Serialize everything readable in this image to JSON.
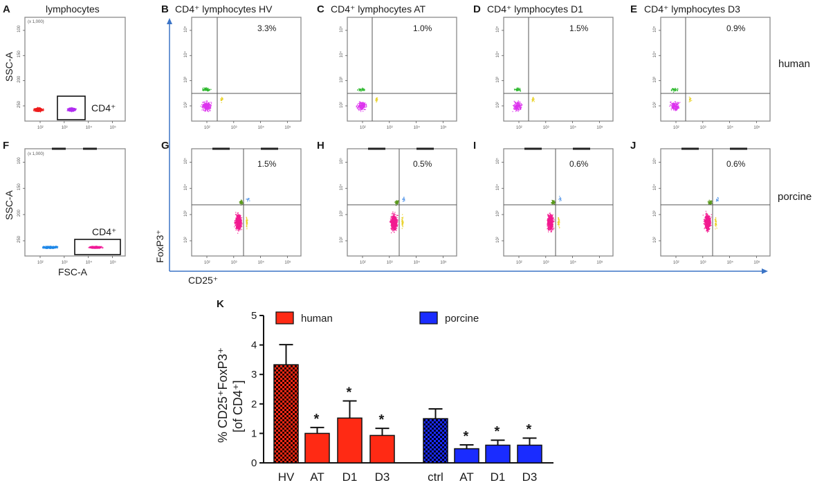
{
  "colors": {
    "human_bar": "#ff2a14",
    "porcine_bar": "#1a2cff",
    "arrow": "#3b74c6",
    "human_lymph": "#ee1c1c",
    "human_cd4": "#b02cf0",
    "porcine_lymph": "#1f88e8",
    "porcine_cd4": "#f01896",
    "human_tl": "#dd33ee",
    "human_ul": "#2db82d",
    "porcine_tl": "#f21a90",
    "porcine_ul": "#5a9a1c",
    "side_yellow": "#e9d32a",
    "side_blue": "#4a90e8"
  },
  "gating_panels": [
    {
      "letter": "A",
      "title": "lymphocytes",
      "ylabel": "SSC-A",
      "xlabel": "",
      "gate_label": "CD4⁺",
      "scale": "(x 1,000)",
      "species": "human"
    },
    {
      "letter": "F",
      "title": "",
      "ylabel": "SSC-A",
      "xlabel": "FSC-A",
      "gate_label": "CD4⁺",
      "scale": "(x 1,000)",
      "species": "porcine"
    }
  ],
  "flow_panels": [
    {
      "letter": "B",
      "title": "CD4⁺ lymphocytes HV",
      "percent": "3.3%",
      "species": "human"
    },
    {
      "letter": "C",
      "title": "CD4⁺ lymphocytes AT",
      "percent": "1.0%",
      "species": "human"
    },
    {
      "letter": "D",
      "title": "CD4⁺ lymphocytes D1",
      "percent": "1.5%",
      "species": "human"
    },
    {
      "letter": "E",
      "title": "CD4⁺ lymphocytes D3",
      "percent": "0.9%",
      "species": "human"
    },
    {
      "letter": "G",
      "title": "",
      "percent": "1.5%",
      "species": "porcine"
    },
    {
      "letter": "H",
      "title": "",
      "percent": "0.5%",
      "species": "porcine"
    },
    {
      "letter": "I",
      "title": "",
      "percent": "0.6%",
      "species": "porcine"
    },
    {
      "letter": "J",
      "title": "",
      "percent": "0.6%",
      "species": "porcine"
    }
  ],
  "row_labels": {
    "human": "human",
    "porcine": "porcine"
  },
  "axis_titles": {
    "y": "FoxP3⁺",
    "x": "CD25⁺"
  },
  "log_tick_labels": [
    "10²",
    "10³",
    "10⁴",
    "10⁵"
  ],
  "linear_tick_labels": [
    "50",
    "100",
    "150",
    "200",
    "250"
  ],
  "chart_data": {
    "type": "bar",
    "letter": "K",
    "title": "",
    "ylabel_line1": "% CD25⁺FoxP3⁺",
    "ylabel_line2": "[of CD4⁺]",
    "xlabel": "",
    "ylim": [
      0,
      5
    ],
    "yticks": [
      "0",
      "1",
      "2",
      "3",
      "4",
      "5"
    ],
    "legend": [
      {
        "name": "human",
        "color": "#ff2a14"
      },
      {
        "name": "porcine",
        "color": "#1a2cff"
      }
    ],
    "series": [
      {
        "name": "human",
        "categories": [
          "HV",
          "AT",
          "D1",
          "D3"
        ],
        "values": [
          3.33,
          1.0,
          1.52,
          0.93
        ],
        "errors": [
          0.68,
          0.2,
          0.58,
          0.24
        ],
        "significant": [
          false,
          true,
          true,
          true
        ],
        "pattern": [
          true,
          false,
          false,
          false
        ]
      },
      {
        "name": "porcine",
        "categories": [
          "ctrl",
          "AT",
          "D1",
          "D3"
        ],
        "values": [
          1.5,
          0.48,
          0.6,
          0.6
        ],
        "errors": [
          0.33,
          0.13,
          0.17,
          0.24
        ],
        "significant": [
          false,
          true,
          true,
          true
        ],
        "pattern": [
          true,
          false,
          false,
          false
        ]
      }
    ],
    "significance_marker": "*"
  }
}
